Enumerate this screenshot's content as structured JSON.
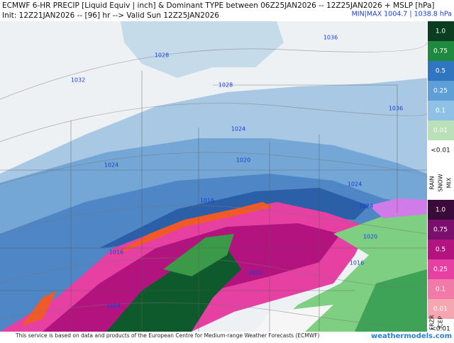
{
  "header": {
    "title": "ECMWF 6-HR PRECIP [Liquid Equiv | inch] & Dominant TYPE between 06Z25JAN2026 -- 12Z25JAN2026 + MSLP [hPa]",
    "subtitle": "Init: 12Z21JAN2026 -- [96] hr --> Valid Sun 12Z25JAN2026",
    "minmax": "MIN|MAX 1004.7 | 1038.8 hPa"
  },
  "map": {
    "isobar_labels": [
      1028,
      1032,
      1036,
      1028,
      1036,
      1024,
      1024,
      1020,
      1024,
      1016,
      1024,
      1020,
      1016,
      1016,
      1020,
      1016
    ]
  },
  "legend": {
    "rain_snow": {
      "levels": [
        "1.0",
        "0.75",
        "0.5",
        "0.25",
        "0.1",
        "0.01",
        "<0.01"
      ],
      "types": [
        "RAIN",
        "SNOW",
        "MIX"
      ]
    },
    "frzr_icep": {
      "levels": [
        "1.0",
        "0.75",
        "0.5",
        "0.25",
        "0.1",
        "0.01",
        "<0.01"
      ],
      "types": [
        "FRZR",
        "ICEP"
      ]
    }
  },
  "footer": {
    "note": "This service is based on data and products of the European Centre for Medium-range Weather Forecasts (ECMWF)",
    "brand": "weathermodels.com"
  }
}
